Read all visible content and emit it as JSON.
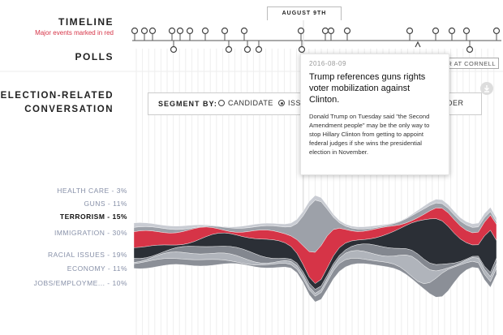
{
  "timeline": {
    "title": "TIMELINE",
    "subtitle": "Major events marked in red",
    "date_tab": "AUGUST 9TH"
  },
  "polls": {
    "title": "POLLS",
    "button_label": "TER AT CORNELL"
  },
  "conversation": {
    "title_line1": "ELECTION-RELATED",
    "title_line2": "CONVERSATION"
  },
  "segment": {
    "label": "SEGMENT BY:",
    "options": [
      {
        "label": "CANDIDATE",
        "selected": false
      },
      {
        "label": "ISSU",
        "selected": true
      },
      {
        "label": "NDER",
        "selected": false
      }
    ]
  },
  "topics": [
    {
      "label": "HEALTH CARE - 3%",
      "active": false
    },
    {
      "label": "GUNS - 11%",
      "active": false
    },
    {
      "label": "TERRORISM - 15%",
      "active": true
    },
    {
      "label": "IMMIGRATION - 30%",
      "active": false
    },
    {
      "label": "RACIAL ISSUES - 19%",
      "active": false
    },
    {
      "label": "ECONOMY - 11%",
      "active": false
    },
    {
      "label": "JOBS/EMPLOYME... - 10%",
      "active": false
    }
  ],
  "tooltip": {
    "date": "2016-08-09",
    "title": "Trump references guns rights voter mobilization against Clinton.",
    "body": "Donald Trump on Tuesday said \"the Second Amendment people\" may be the only way to stop Hillary Clinton from getting to appoint federal judges if she wins the presidential election in November."
  },
  "icons": {
    "download": "download-icon",
    "timeline_marker": "circle-marker-icon"
  },
  "colors": {
    "accent_red": "#d63447",
    "dark": "#2b2f36",
    "text_muted": "#8790a8"
  }
}
